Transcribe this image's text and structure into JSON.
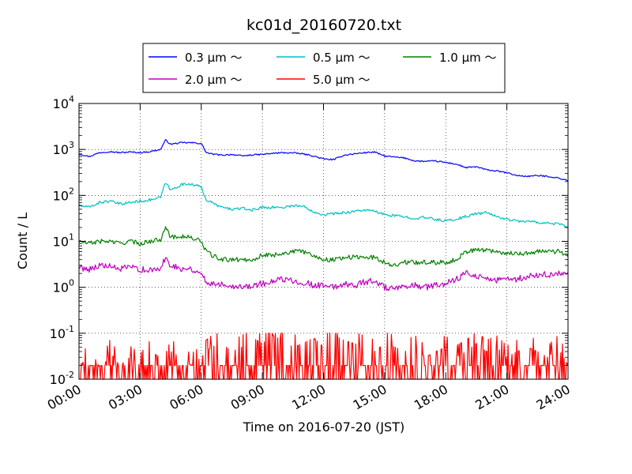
{
  "chart_data": {
    "type": "line",
    "title": "kc01d_20160720.txt",
    "xlabel": "Time on 2016-07-20 (JST)",
    "ylabel": "Count / L",
    "yscale": "log",
    "ylim": [
      0.01,
      10000
    ],
    "xlim": [
      "00:00",
      "24:00"
    ],
    "x_ticks": [
      "00:00",
      "03:00",
      "06:00",
      "09:00",
      "12:00",
      "15:00",
      "18:00",
      "21:00",
      "24:00"
    ],
    "y_ticks": [
      {
        "value": 0.01,
        "base": "10",
        "exp": "-2"
      },
      {
        "value": 0.1,
        "base": "10",
        "exp": "-1"
      },
      {
        "value": 1,
        "base": "10",
        "exp": "0"
      },
      {
        "value": 10,
        "base": "10",
        "exp": "1"
      },
      {
        "value": 100,
        "base": "10",
        "exp": "2"
      },
      {
        "value": 1000,
        "base": "10",
        "exp": "3"
      },
      {
        "value": 10000,
        "base": "10",
        "exp": "4"
      }
    ],
    "grid": true,
    "legend_position": "top",
    "x_hours": [
      0,
      0.5,
      1,
      1.5,
      2,
      2.5,
      3,
      3.5,
      4,
      4.25,
      4.5,
      5,
      5.5,
      6,
      6.25,
      6.5,
      7,
      7.5,
      8,
      8.5,
      9,
      9.5,
      10,
      10.5,
      11,
      11.5,
      12,
      12.5,
      13,
      13.5,
      14,
      14.5,
      15,
      15.5,
      16,
      16.5,
      17,
      17.5,
      18,
      18.5,
      19,
      19.5,
      20,
      20.5,
      21,
      21.5,
      22,
      22.5,
      23,
      23.5,
      24
    ],
    "series": [
      {
        "name": "0.3 μm ～",
        "color": "#0000ff",
        "values": [
          800,
          700,
          850,
          900,
          850,
          880,
          850,
          900,
          1000,
          1600,
          1300,
          1400,
          1400,
          1350,
          850,
          800,
          750,
          780,
          720,
          760,
          780,
          820,
          850,
          840,
          800,
          720,
          620,
          600,
          750,
          800,
          850,
          880,
          720,
          680,
          650,
          560,
          550,
          560,
          520,
          480,
          400,
          420,
          360,
          340,
          310,
          270,
          260,
          270,
          260,
          240,
          210
        ]
      },
      {
        "name": "0.5 μm ～",
        "color": "#00bfbf",
        "values": [
          60,
          55,
          70,
          75,
          65,
          70,
          75,
          80,
          90,
          190,
          130,
          170,
          180,
          150,
          80,
          70,
          55,
          50,
          52,
          48,
          55,
          55,
          55,
          60,
          58,
          45,
          38,
          40,
          42,
          45,
          48,
          45,
          38,
          36,
          34,
          32,
          33,
          30,
          28,
          30,
          35,
          40,
          42,
          35,
          30,
          28,
          27,
          26,
          25,
          24,
          20
        ]
      },
      {
        "name": "1.0 μm ～",
        "color": "#008000",
        "values": [
          10,
          9,
          10,
          10,
          9,
          10,
          9,
          10,
          11,
          22,
          12,
          13,
          12,
          10,
          6,
          5,
          4,
          4,
          4,
          4,
          5,
          5,
          5.5,
          6,
          6,
          5,
          4,
          4,
          4.5,
          4.5,
          4.5,
          4.5,
          3.5,
          3,
          3.5,
          3.5,
          3.5,
          3.5,
          3.5,
          4,
          6,
          6.5,
          6.5,
          6,
          5.5,
          5.5,
          5.5,
          6,
          6,
          6,
          5
        ]
      },
      {
        "name": "2.0 μm ～",
        "color": "#bf00bf",
        "values": [
          2.7,
          2.5,
          3,
          2.8,
          2.5,
          2.7,
          2.5,
          2.3,
          2.5,
          4.5,
          3,
          2.6,
          2.5,
          2,
          1.3,
          1.2,
          1.2,
          1.1,
          1,
          1.1,
          1.2,
          1.3,
          1.5,
          1.4,
          1.3,
          1.1,
          1.1,
          1,
          1.2,
          1.1,
          1.3,
          1.4,
          1,
          0.9,
          1,
          1.1,
          1,
          1.1,
          1.2,
          1.5,
          2,
          1.8,
          1.6,
          1.4,
          1.5,
          1.5,
          1.7,
          1.8,
          1.9,
          2,
          1.8
        ]
      },
      {
        "name": "5.0 μm ～",
        "color": "#ff0000",
        "values": [
          0.02,
          0.03,
          0.01,
          0.04,
          0.02,
          0.03,
          0.02,
          0.04,
          0.03,
          0.02,
          0.04,
          0.03,
          0.02,
          0.03,
          0.04,
          0.05,
          0.06,
          0.04,
          0.05,
          0.08,
          0.06,
          0.09,
          0.07,
          0.05,
          0.06,
          0.08,
          0.05,
          0.09,
          0.07,
          0.06,
          0.05,
          0.04,
          0.06,
          0.05,
          0.04,
          0.05,
          0.03,
          0.04,
          0.05,
          0.03,
          0.04,
          0.06,
          0.04,
          0.05,
          0.03,
          0.04,
          0.05,
          0.04,
          0.03,
          0.05,
          0.02
        ]
      }
    ]
  }
}
